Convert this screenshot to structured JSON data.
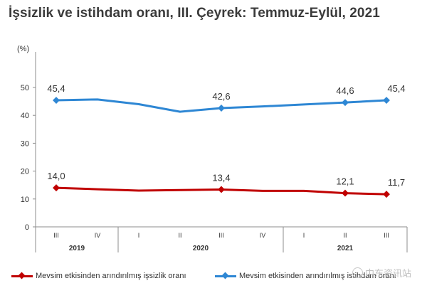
{
  "title": "İşsizlik ve istihdam oranı, III. Çeyrek: Temmuz-Eylül, 2021",
  "watermark": "中东资讯站",
  "chart_data": {
    "type": "line",
    "title": "İşsizlik ve istihdam oranı, III. Çeyrek: Temmuz-Eylül, 2021",
    "ylabel": "(%)",
    "xlabel": "",
    "ylim": [
      0,
      50
    ],
    "yticks": [
      0,
      10,
      20,
      30,
      40,
      50
    ],
    "categories": [
      "III",
      "IV",
      "I",
      "II",
      "III",
      "IV",
      "I",
      "II",
      "III"
    ],
    "years": [
      {
        "label": "2019",
        "start": 0,
        "end": 1
      },
      {
        "label": "2020",
        "start": 2,
        "end": 5
      },
      {
        "label": "2021",
        "start": 6,
        "end": 8
      }
    ],
    "series": [
      {
        "name": "Mevsim etkisinden arındırılmış işsizlik oranı",
        "color": "#c00000",
        "values": [
          14.0,
          13.5,
          13.0,
          13.2,
          13.4,
          12.9,
          12.9,
          12.1,
          11.7
        ],
        "labels": [
          "14,0",
          null,
          null,
          null,
          "13,4",
          null,
          null,
          "12,1",
          "11,7"
        ]
      },
      {
        "name": "Mevsim etkisinden arındırılmış istihdam oranı",
        "color": "#2e87d4",
        "values": [
          45.4,
          45.7,
          44.0,
          41.3,
          42.6,
          43.2,
          43.9,
          44.6,
          45.4
        ],
        "labels": [
          "45,4",
          null,
          null,
          null,
          "42,6",
          null,
          null,
          "44,6",
          "45,4"
        ]
      }
    ],
    "legend": "bottom"
  }
}
